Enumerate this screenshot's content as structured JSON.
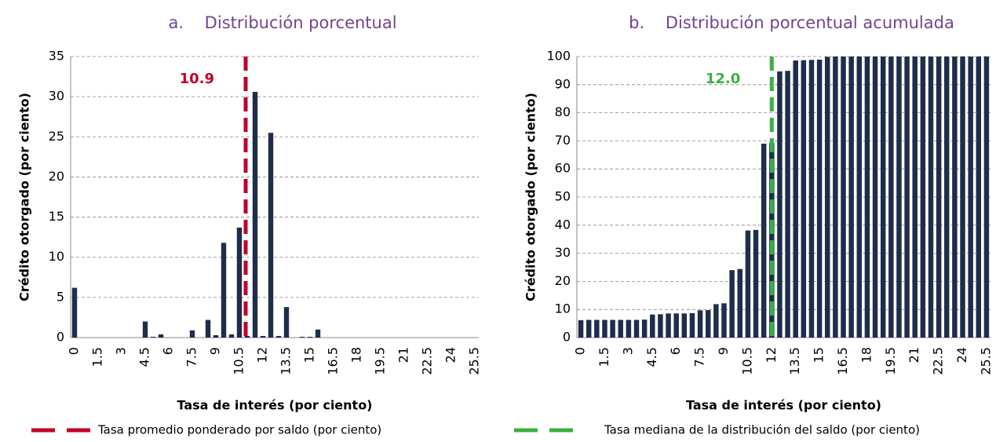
{
  "chart_data": [
    {
      "type": "bar",
      "title": "a.    Distribución porcentual",
      "x_label": "Tasa de interés (por ciento)",
      "y_label": "Crédito otorgado (por ciento)",
      "categories": [
        "0",
        null,
        null,
        "1.5",
        null,
        null,
        "3",
        null,
        null,
        "4.5",
        null,
        null,
        "6",
        null,
        null,
        "7.5",
        null,
        null,
        "9",
        null,
        null,
        "10.5",
        null,
        null,
        "12",
        null,
        null,
        "13.5",
        null,
        null,
        "15",
        null,
        null,
        "16.5",
        null,
        null,
        "18",
        null,
        null,
        "19.5",
        null,
        null,
        "21",
        null,
        null,
        "22.5",
        null,
        null,
        "24",
        null,
        null,
        "25.5"
      ],
      "values": [
        6.2,
        0,
        0,
        0,
        0,
        0,
        0,
        0,
        0,
        2.0,
        0.1,
        0.4,
        0,
        0,
        0,
        0.9,
        0,
        2.2,
        0.3,
        11.8,
        0.4,
        13.7,
        0.2,
        30.6,
        0.2,
        25.5,
        0.2,
        3.8,
        0,
        0.1,
        0.1,
        1.0,
        0,
        0,
        0,
        0,
        0,
        0,
        0,
        0,
        0,
        0,
        0,
        0,
        0,
        0,
        0,
        0,
        0,
        0,
        0,
        0
      ],
      "color": "#1f2d4d",
      "ylim": [
        0,
        35
      ],
      "yticks": [
        0,
        5,
        10,
        15,
        20,
        25,
        30,
        35
      ],
      "grid": true,
      "reference_line": {
        "name": "Tasa promedio ponderado por saldo (por ciento)",
        "value": 10.9,
        "color": "#c0002a"
      }
    },
    {
      "type": "bar",
      "title": "b.    Distribución porcentual acumulada",
      "x_label": "Tasa de interés (por ciento)",
      "y_label": "Crédito otorgado (por ciento)",
      "categories": [
        "0",
        null,
        null,
        "1.5",
        null,
        null,
        "3",
        null,
        null,
        "4.5",
        null,
        null,
        "6",
        null,
        null,
        "7.5",
        null,
        null,
        "9",
        null,
        null,
        "10.5",
        null,
        null,
        "12",
        null,
        null,
        "13.5",
        null,
        null,
        "15",
        null,
        null,
        "16.5",
        null,
        null,
        "18",
        null,
        null,
        "19.5",
        null,
        null,
        "21",
        null,
        null,
        "22.5",
        null,
        null,
        "24",
        null,
        null,
        "25.5"
      ],
      "values": [
        6.2,
        6.3,
        6.3,
        6.3,
        6.3,
        6.3,
        6.3,
        6.3,
        6.4,
        8.2,
        8.3,
        8.6,
        8.6,
        8.6,
        8.7,
        9.7,
        9.8,
        11.9,
        12.2,
        24.0,
        24.4,
        38.1,
        38.3,
        69.0,
        69.2,
        94.7,
        94.9,
        98.6,
        98.7,
        98.8,
        98.9,
        99.9,
        100,
        100,
        100,
        100,
        100,
        100,
        100,
        100,
        100,
        100,
        100,
        100,
        100,
        100,
        100,
        100,
        100,
        100,
        100,
        100
      ],
      "color": "#1f2d4d",
      "ylim": [
        0,
        100
      ],
      "yticks": [
        0,
        10,
        20,
        30,
        40,
        50,
        60,
        70,
        80,
        90,
        100
      ],
      "grid": true,
      "reference_line": {
        "name": "Tasa mediana de la distribución del saldo (por ciento)",
        "value": 12.0,
        "value_label": "12.0",
        "color": "#3cb043"
      }
    }
  ]
}
